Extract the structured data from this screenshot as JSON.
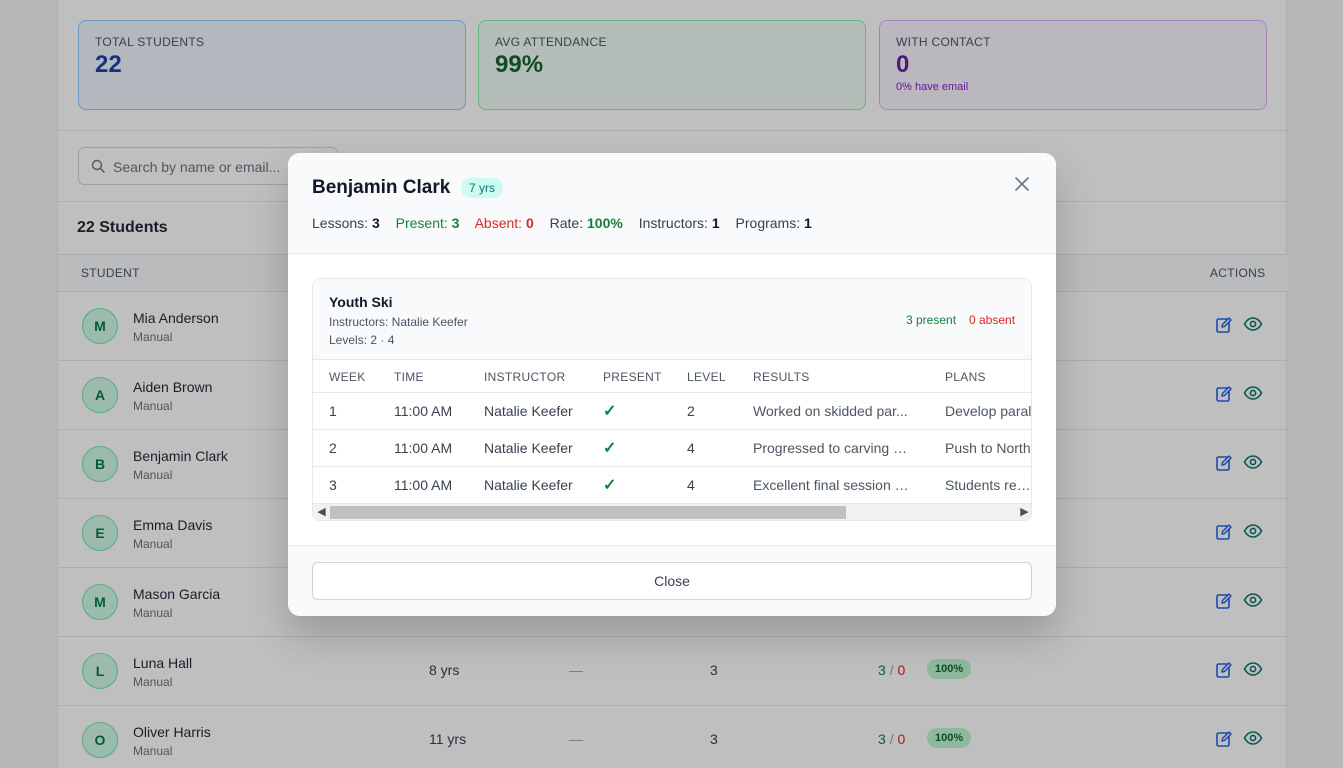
{
  "stats": {
    "total": {
      "label": "TOTAL STUDENTS",
      "value": "22"
    },
    "attendance": {
      "label": "AVG ATTENDANCE",
      "value": "99%"
    },
    "contact": {
      "label": "WITH CONTACT",
      "value": "0",
      "sub": "0% have email"
    }
  },
  "search": {
    "placeholder": "Search by name or email..."
  },
  "list_title": "22 Students",
  "table_headers": {
    "student": "STUDENT",
    "actions": "ACTIONS"
  },
  "students": [
    {
      "initial": "M",
      "name": "Mia Anderson",
      "source": "Manual"
    },
    {
      "initial": "A",
      "name": "Aiden Brown",
      "source": "Manual"
    },
    {
      "initial": "B",
      "name": "Benjamin Clark",
      "source": "Manual"
    },
    {
      "initial": "E",
      "name": "Emma Davis",
      "source": "Manual"
    },
    {
      "initial": "M",
      "name": "Mason Garcia",
      "source": "Manual"
    },
    {
      "initial": "L",
      "name": "Luna Hall",
      "source": "Manual",
      "age": "8 yrs",
      "contact": "—",
      "lessons": "3",
      "present": "3",
      "sep": "/",
      "absent": "0",
      "rate": "100%"
    },
    {
      "initial": "O",
      "name": "Oliver Harris",
      "source": "Manual",
      "age": "11 yrs",
      "contact": "—",
      "lessons": "3",
      "present": "3",
      "sep": "/",
      "absent": "0",
      "rate": "100%"
    }
  ],
  "modal": {
    "name": "Benjamin Clark",
    "age": "7 yrs",
    "stats": {
      "lessons_label": "Lessons:",
      "lessons": "3",
      "present_label": "Present:",
      "present": "3",
      "absent_label": "Absent:",
      "absent": "0",
      "rate_label": "Rate:",
      "rate": "100%",
      "instructors_label": "Instructors:",
      "instructors": "1",
      "programs_label": "Programs:",
      "programs": "1"
    },
    "program": {
      "name": "Youth Ski",
      "instructors": "Instructors: Natalie Keefer",
      "levels": "Levels: 2 · 4",
      "present_summary": "3 present",
      "absent_summary": "0 absent",
      "headers": {
        "week": "WEEK",
        "time": "TIME",
        "instructor": "INSTRUCTOR",
        "present": "PRESENT",
        "level": "LEVEL",
        "results": "RESULTS",
        "plans": "PLANS"
      },
      "weeks": [
        {
          "week": "1",
          "time": "11:00 AM",
          "instructor": "Natalie Keefer",
          "present": "✓",
          "level": "2",
          "results": "Worked on skidded par...",
          "plans": "Develop paral"
        },
        {
          "week": "2",
          "time": "11:00 AM",
          "instructor": "Natalie Keefer",
          "present": "✓",
          "level": "4",
          "results": "Progressed to carving b...",
          "plans": "Push to North"
        },
        {
          "week": "3",
          "time": "11:00 AM",
          "instructor": "Natalie Keefer",
          "present": "✓",
          "level": "4",
          "results": "Excellent final session a...",
          "plans": "Students ready"
        }
      ]
    },
    "close_label": "Close"
  },
  "icons": {
    "search": "search-icon",
    "edit": "edit-icon",
    "view": "eye-icon",
    "close": "close-icon",
    "check": "check-icon"
  },
  "colors": {
    "accent_blue": "#2563eb",
    "accent_teal": "#0f766e",
    "present_green": "#15803d",
    "absent_red": "#dc2626"
  }
}
